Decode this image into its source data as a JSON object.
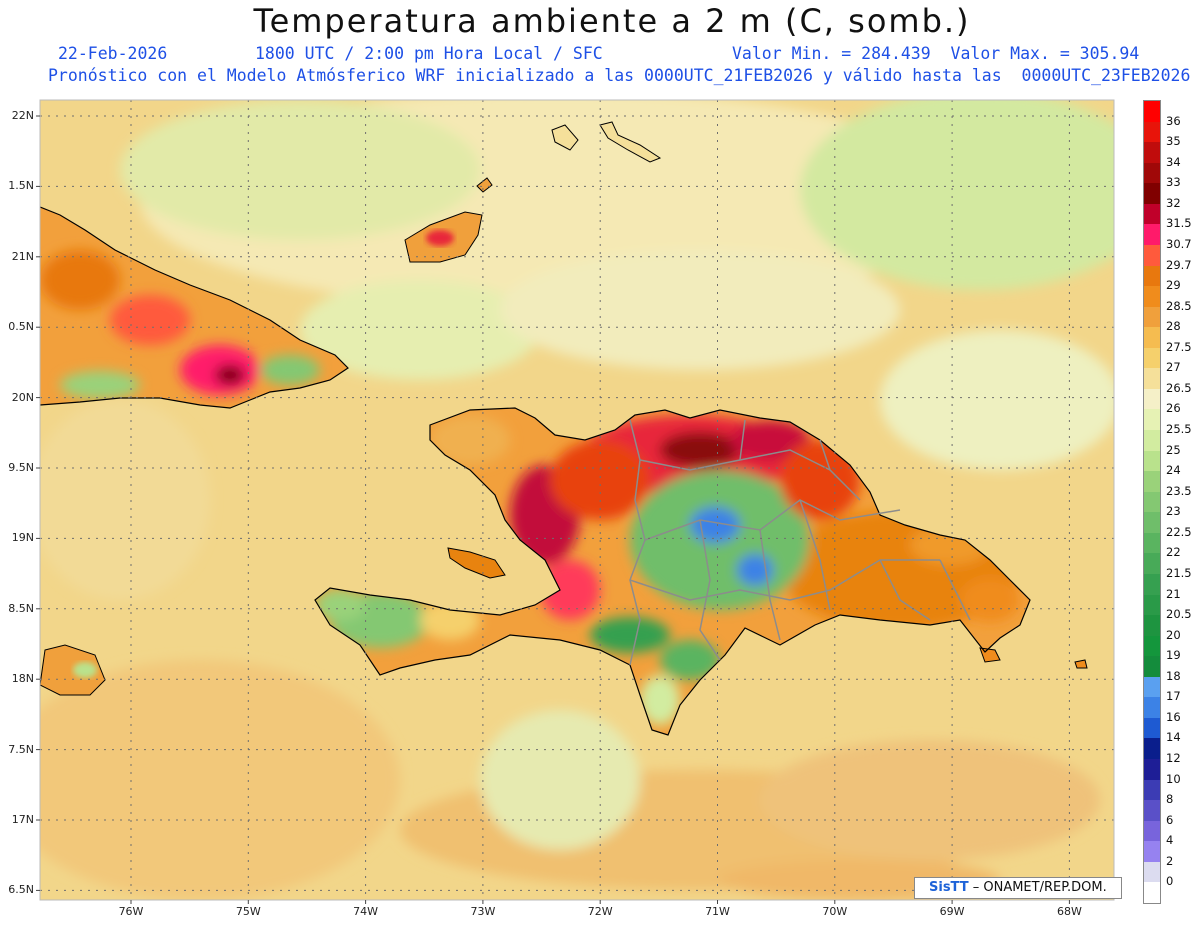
{
  "header": {
    "title": "Temperatura ambiente a 2 m (C, somb.)",
    "date": "22-Feb-2026",
    "time": "1800 UTC / 2:00 pm Hora Local / SFC",
    "minmax": "Valor Min. = 284.439  Valor Max. = 305.94",
    "model_line": "Pronóstico con el Modelo Atmósferico WRF inicializado a las 0000UTC_21FEB2026 y válido hasta las  0000UTC_23FEB2026"
  },
  "axes": {
    "lat_labels": [
      "22N",
      "1.5N",
      "21N",
      "0.5N",
      "20N",
      "9.5N",
      "19N",
      "8.5N",
      "18N",
      "7.5N",
      "17N",
      "6.5N"
    ],
    "lon_labels": [
      "76W",
      "75W",
      "74W",
      "73W",
      "72W",
      "71W",
      "70W",
      "69W",
      "68W"
    ],
    "lat_range": [
      16.5,
      22.1
    ],
    "lon_range": [
      -76.6,
      -67.6
    ]
  },
  "colorbar": {
    "labels": [
      "36",
      "35",
      "34",
      "33",
      "32",
      "31.5",
      "30.7",
      "29.7",
      "29",
      "28.5",
      "28",
      "27.5",
      "27",
      "26.5",
      "26",
      "25.5",
      "25",
      "24",
      "23.5",
      "23",
      "22.5",
      "22",
      "21.5",
      "21",
      "20.5",
      "20",
      "19",
      "18",
      "17",
      "16",
      "14",
      "12",
      "10",
      "8",
      "6",
      "4",
      "2",
      "0"
    ],
    "colors": [
      "#ff0000",
      "#e8140a",
      "#c00c0c",
      "#a00808",
      "#800000",
      "#c0002a",
      "#ff1a6a",
      "#ff5a3c",
      "#e8780e",
      "#f08c1c",
      "#f0a03c",
      "#f5bc50",
      "#f5d06c",
      "#f5e09a",
      "#f5f0c8",
      "#e6f2b4",
      "#d2eca0",
      "#b9e28c",
      "#9ad27a",
      "#84c872",
      "#6fbe6a",
      "#5ab460",
      "#48aa58",
      "#36a050",
      "#2a9a48",
      "#1e9440",
      "#14963c",
      "#148c3c",
      "#5aa0f0",
      "#3c82e6",
      "#1e5ad2",
      "#0a1e8c",
      "#1e1e96",
      "#3c3cb4",
      "#5a50c8",
      "#7864dc",
      "#9682f0",
      "#dcdcf0",
      "#ffffff"
    ]
  },
  "map": {
    "background_color": "#f2d68a",
    "land_hot_color": "#e8780e",
    "land_warm_color": "#f2a03c",
    "land_cool_color": "#5ab460"
  },
  "credit": {
    "logo": "SisTT",
    "text": " – ONAMET/REP.DOM."
  }
}
